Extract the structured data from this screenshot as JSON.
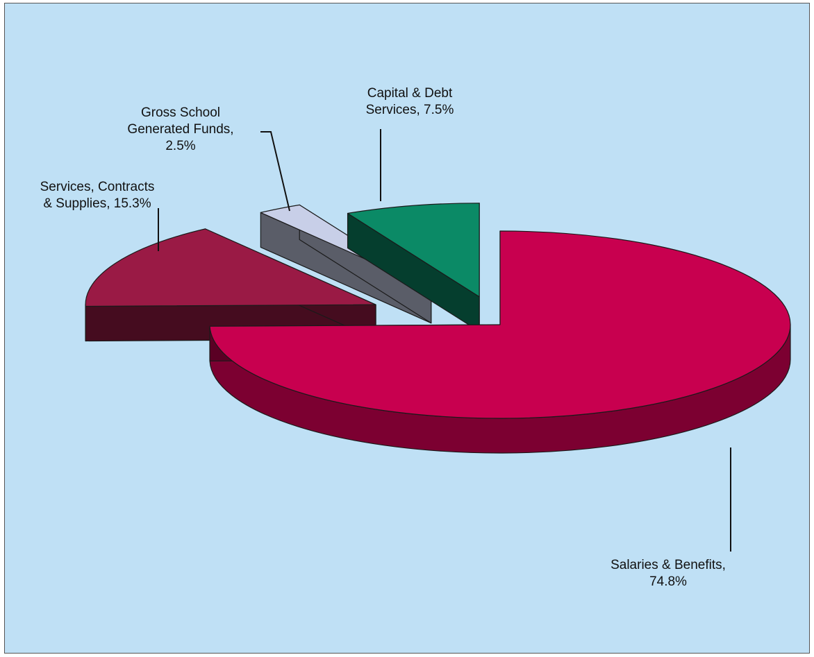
{
  "chart_data": {
    "type": "pie",
    "title": "",
    "exploded": true,
    "three_d": true,
    "background_color": "#bfe0f5",
    "slices": [
      {
        "name": "Salaries & Benefits",
        "value": 74.8,
        "display": "74.8%",
        "color": "#c8004f",
        "label_lines": [
          "Salaries & Benefits,",
          "74.8%"
        ]
      },
      {
        "name": "Services, Contracts & Supplies",
        "value": 15.3,
        "display": "15.3%",
        "color": "#9a1a45",
        "label_lines": [
          "Services, Contracts",
          "& Supplies, 15.3%"
        ]
      },
      {
        "name": "Gross School Generated Funds",
        "value": 2.5,
        "display": "2.5%",
        "color": "#c8cfe8",
        "label_lines": [
          "Gross School",
          "Generated Funds,",
          "2.5%"
        ]
      },
      {
        "name": "Capital & Debt Services",
        "value": 7.5,
        "display": "7.5%",
        "color": "#0b8a66",
        "label_lines": [
          "Capital & Debt",
          "Services, 7.5%"
        ]
      }
    ]
  }
}
